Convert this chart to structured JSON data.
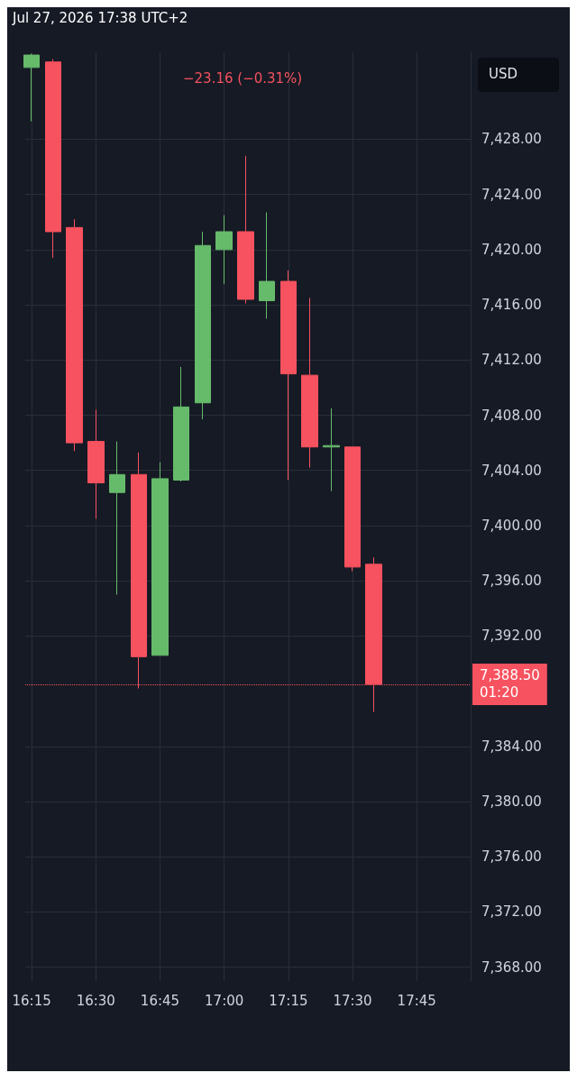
{
  "chart_data": {
    "type": "candlestick",
    "title": "−23.16 (−0.31%)",
    "ylabel": "USD",
    "annotations": [
      "Jul 27, 2026 17:38 UTC+2"
    ],
    "x": [
      16.25,
      16.3333,
      16.4167,
      16.5,
      16.5833,
      16.6667,
      16.75,
      16.8333,
      16.9167,
      17.0,
      17.0833,
      17.1667,
      17.25,
      17.3333,
      17.4167,
      17.5,
      17.5833
    ],
    "ohlc": [
      [
        7433.2,
        7434.2,
        7429.3,
        7434.1
      ],
      [
        7433.6,
        7433.8,
        7419.4,
        7421.3
      ],
      [
        7421.6,
        7422.2,
        7405.4,
        7406.0
      ],
      [
        7406.1,
        7408.4,
        7400.5,
        7403.1
      ],
      [
        7402.4,
        7406.1,
        7395.0,
        7403.7
      ],
      [
        7403.7,
        7405.3,
        7388.2,
        7390.5
      ],
      [
        7390.6,
        7404.6,
        7390.6,
        7403.4
      ],
      [
        7403.3,
        7411.5,
        7403.2,
        7408.6
      ],
      [
        7408.9,
        7421.3,
        7407.7,
        7420.3
      ],
      [
        7420.0,
        7422.5,
        7417.5,
        7421.3
      ],
      [
        7421.3,
        7426.8,
        7416.1,
        7416.4
      ],
      [
        7416.3,
        7422.7,
        7415.0,
        7417.7
      ],
      [
        7417.7,
        7418.5,
        7403.3,
        7411.0
      ],
      [
        7410.9,
        7416.5,
        7404.2,
        7405.7
      ],
      [
        7405.7,
        7408.5,
        7402.5,
        7405.8
      ],
      [
        7405.7,
        7405.7,
        7396.7,
        7397.0
      ],
      [
        7397.2,
        7397.7,
        7386.5,
        7388.5
      ]
    ],
    "colors": [
      "#66bb6a",
      "#f7525f",
      "#f7525f",
      "#f7525f",
      "#66bb6a",
      "#f7525f",
      "#66bb6a",
      "#66bb6a",
      "#66bb6a",
      "#66bb6a",
      "#f7525f",
      "#66bb6a",
      "#f7525f",
      "#f7525f",
      "#66bb6a",
      "#f7525f",
      "#f7525f"
    ],
    "xlim": [
      16.225,
      17.96
    ],
    "ylim": [
      7367,
      7434.3
    ],
    "xticks": [
      {
        "value": 16.25,
        "label": "16:15"
      },
      {
        "value": 16.5,
        "label": "16:30"
      },
      {
        "value": 16.75,
        "label": "16:45"
      },
      {
        "value": 17.0,
        "label": "17:00"
      },
      {
        "value": 17.25,
        "label": "17:15"
      },
      {
        "value": 17.5,
        "label": "17:30"
      },
      {
        "value": 17.75,
        "label": "17:45"
      }
    ],
    "yticks": [
      {
        "value": 7368,
        "label": "7,368.00"
      },
      {
        "value": 7372,
        "label": "7,372.00"
      },
      {
        "value": 7376,
        "label": "7,376.00"
      },
      {
        "value": 7380,
        "label": "7,380.00"
      },
      {
        "value": 7384,
        "label": "7,384.00"
      },
      {
        "value": 7392,
        "label": "7,392.00"
      },
      {
        "value": 7396,
        "label": "7,396.00"
      },
      {
        "value": 7400,
        "label": "7,400.00"
      },
      {
        "value": 7404,
        "label": "7,404.00"
      },
      {
        "value": 7408,
        "label": "7,408.00"
      },
      {
        "value": 7412,
        "label": "7,412.00"
      },
      {
        "value": 7416,
        "label": "7,416.00"
      },
      {
        "value": 7420,
        "label": "7,420.00"
      },
      {
        "value": 7424,
        "label": "7,424.00"
      },
      {
        "value": 7428,
        "label": "7,428.00"
      }
    ],
    "ref_lines": [
      {
        "axis": "y",
        "value": 7388.5,
        "label": "7,388.50\n01:20",
        "color": "#f7525f",
        "line_style": "dotted"
      }
    ],
    "grid": true
  }
}
